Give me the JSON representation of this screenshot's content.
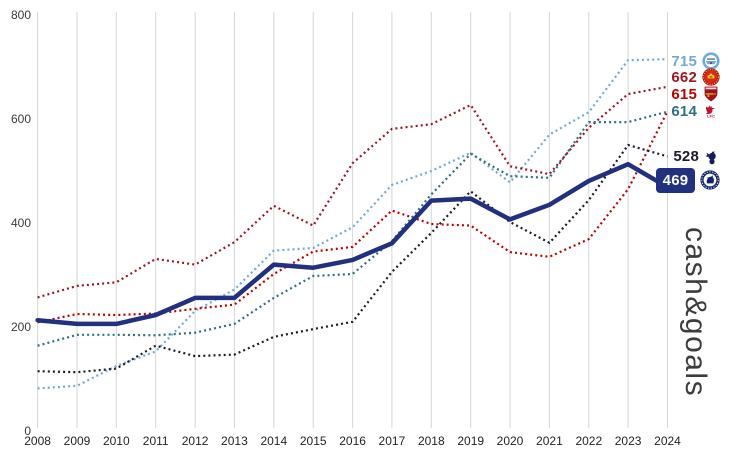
{
  "watermark": {
    "text": "cash&goals"
  },
  "colors": {
    "background": "#ffffff",
    "gridline": "#d6d6d6",
    "chelsea_highlight_box": "#21307f",
    "watermark_gray": "#3c3c3c"
  },
  "chart_data": {
    "type": "line",
    "title": "",
    "xlabel": "",
    "ylabel": "",
    "x": [
      2008,
      2009,
      2010,
      2011,
      2012,
      2013,
      2014,
      2015,
      2016,
      2017,
      2018,
      2019,
      2020,
      2021,
      2022,
      2023,
      2024
    ],
    "ylim": [
      0,
      800
    ],
    "yticks": [
      0,
      200,
      400,
      600,
      800
    ],
    "grid": "vertical-only",
    "legend_position": "right-of-line-end",
    "series": [
      {
        "id": "man-city",
        "name": "Manchester City",
        "badge_icon": "man-city-crest-icon",
        "color": "#74a9d6",
        "style": "dotted",
        "final_label": "715",
        "values": [
          82,
          87,
          125,
          153,
          231,
          272,
          347,
          352,
          392,
          473,
          500,
          535,
          478,
          570,
          613,
          713,
          715
        ]
      },
      {
        "id": "man-united",
        "name": "Manchester United",
        "badge_icon": "man-united-crest-icon",
        "color": "#9e1626",
        "style": "dotted",
        "final_label": "662",
        "values": [
          257,
          279,
          286,
          331,
          320,
          363,
          433,
          395,
          515,
          581,
          590,
          627,
          509,
          494,
          583,
          648,
          662
        ]
      },
      {
        "id": "arsenal",
        "name": "Arsenal",
        "badge_icon": "arsenal-crest-icon",
        "color": "#c00000",
        "style": "dotted",
        "final_label": "615",
        "values": [
          209,
          225,
          223,
          226,
          235,
          243,
          302,
          345,
          354,
          424,
          398,
          395,
          344,
          335,
          369,
          465,
          615
        ]
      },
      {
        "id": "liverpool",
        "name": "Liverpool",
        "badge_icon": "liverpool-crest-icon",
        "color": "#2e6f80",
        "style": "dotted",
        "final_label": "614",
        "values": [
          164,
          185,
          185,
          184,
          189,
          206,
          256,
          298,
          302,
          365,
          455,
          533,
          490,
          487,
          594,
          594,
          614
        ]
      },
      {
        "id": "tottenham",
        "name": "Tottenham Hotspur",
        "badge_icon": "tottenham-crest-icon",
        "color": "#1c1c2b",
        "style": "dotted",
        "final_label": "528",
        "values": [
          115,
          113,
          120,
          164,
          144,
          147,
          181,
          196,
          210,
          306,
          381,
          461,
          402,
          362,
          444,
          550,
          528
        ]
      },
      {
        "id": "chelsea",
        "name": "Chelsea",
        "badge_icon": "chelsea-crest-icon",
        "color": "#21307f",
        "style": "solid",
        "highlight": true,
        "final_label": "469",
        "values": [
          213,
          206,
          206,
          223,
          256,
          256,
          320,
          314,
          329,
          361,
          443,
          447,
          407,
          435,
          481,
          513,
          469
        ]
      }
    ]
  }
}
